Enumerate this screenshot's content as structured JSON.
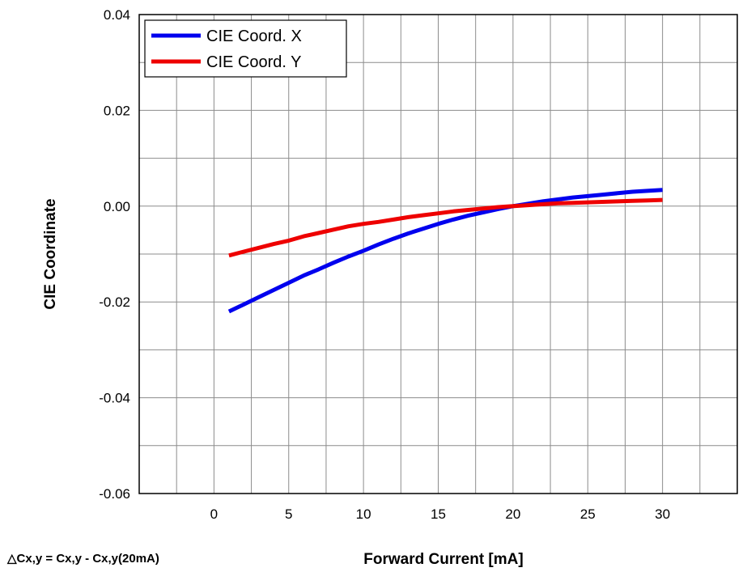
{
  "chart_data": {
    "type": "line",
    "xlabel": "Forward Current [mA]",
    "ylabel": "CIE Coordinate",
    "annotation": "△Cx,y = Cx,y - Cx,y(20mA)",
    "xlim": [
      -5,
      35
    ],
    "ylim": [
      -0.06,
      0.04
    ],
    "xticks": [
      "0",
      "5",
      "10",
      "15",
      "20",
      "25",
      "30"
    ],
    "yticks": [
      "0.04",
      "0.02",
      "0.00",
      "-0.02",
      "-0.04",
      "-0.06"
    ],
    "grid": true,
    "legend_position": "top-left",
    "series": [
      {
        "name": "CIE Coord. X",
        "color": "#0000ee",
        "x": [
          1,
          2,
          3,
          4,
          5,
          6,
          7,
          8,
          9,
          10,
          11,
          12,
          13,
          14,
          15,
          16,
          17,
          18,
          19,
          20,
          21,
          22,
          23,
          24,
          25,
          26,
          27,
          28,
          29,
          30
        ],
        "y": [
          -0.022,
          -0.0205,
          -0.019,
          -0.0175,
          -0.016,
          -0.0145,
          -0.0132,
          -0.0118,
          -0.0105,
          -0.0093,
          -0.008,
          -0.0068,
          -0.0057,
          -0.0047,
          -0.0037,
          -0.0028,
          -0.002,
          -0.0013,
          -0.0006,
          0.0,
          0.0005,
          0.001,
          0.0014,
          0.0018,
          0.0021,
          0.0024,
          0.0027,
          0.003,
          0.0032,
          0.0034
        ]
      },
      {
        "name": "CIE Coord. Y",
        "color": "#ee0000",
        "x": [
          1,
          2,
          3,
          4,
          5,
          6,
          7,
          8,
          9,
          10,
          11,
          12,
          13,
          14,
          15,
          16,
          17,
          18,
          19,
          20,
          21,
          22,
          23,
          24,
          25,
          26,
          27,
          28,
          29,
          30
        ],
        "y": [
          -0.0103,
          -0.0095,
          -0.0087,
          -0.0079,
          -0.0072,
          -0.0063,
          -0.0056,
          -0.0049,
          -0.0042,
          -0.0037,
          -0.0033,
          -0.0028,
          -0.0023,
          -0.0019,
          -0.0015,
          -0.0011,
          -0.0008,
          -0.0005,
          -0.0002,
          0.0,
          0.0002,
          0.0004,
          0.0006,
          0.0007,
          0.0008,
          0.0009,
          0.001,
          0.0011,
          0.0012,
          0.0013
        ]
      }
    ]
  }
}
